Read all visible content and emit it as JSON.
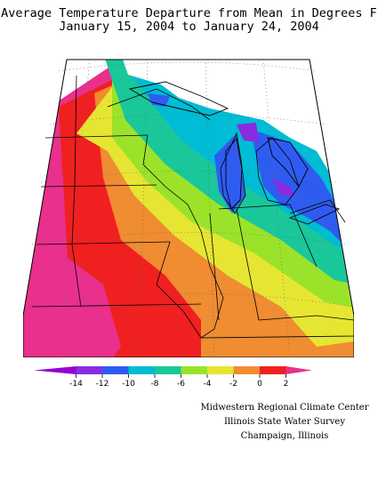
{
  "title": {
    "line1": "Average Temperature Departure from Mean in Degrees F",
    "line2": "January 15, 2004 to January 24, 2004"
  },
  "legend": {
    "colors": [
      "#9400d3",
      "#8a2be2",
      "#2f5cf0",
      "#00bcd4",
      "#19c79a",
      "#9be32a",
      "#e6e632",
      "#f08c32",
      "#f02020",
      "#e8308c"
    ],
    "ticks": [
      "-14",
      "-12",
      "-10",
      "-8",
      "-6",
      "-4",
      "-2",
      "0",
      "2"
    ]
  },
  "credits": {
    "line1": "Midwestern Regional Climate Center",
    "line2": "Illinois State Water Survey",
    "line3": "Champaign, Illinois"
  },
  "colors": {
    "purple": "#8a2be2",
    "blue": "#2f5cf0",
    "cyan": "#00bcd4",
    "teal": "#19c79a",
    "lime": "#9be32a",
    "yellow": "#e6e632",
    "orange": "#f08c32",
    "red": "#f02020",
    "magenta": "#e8308c"
  }
}
